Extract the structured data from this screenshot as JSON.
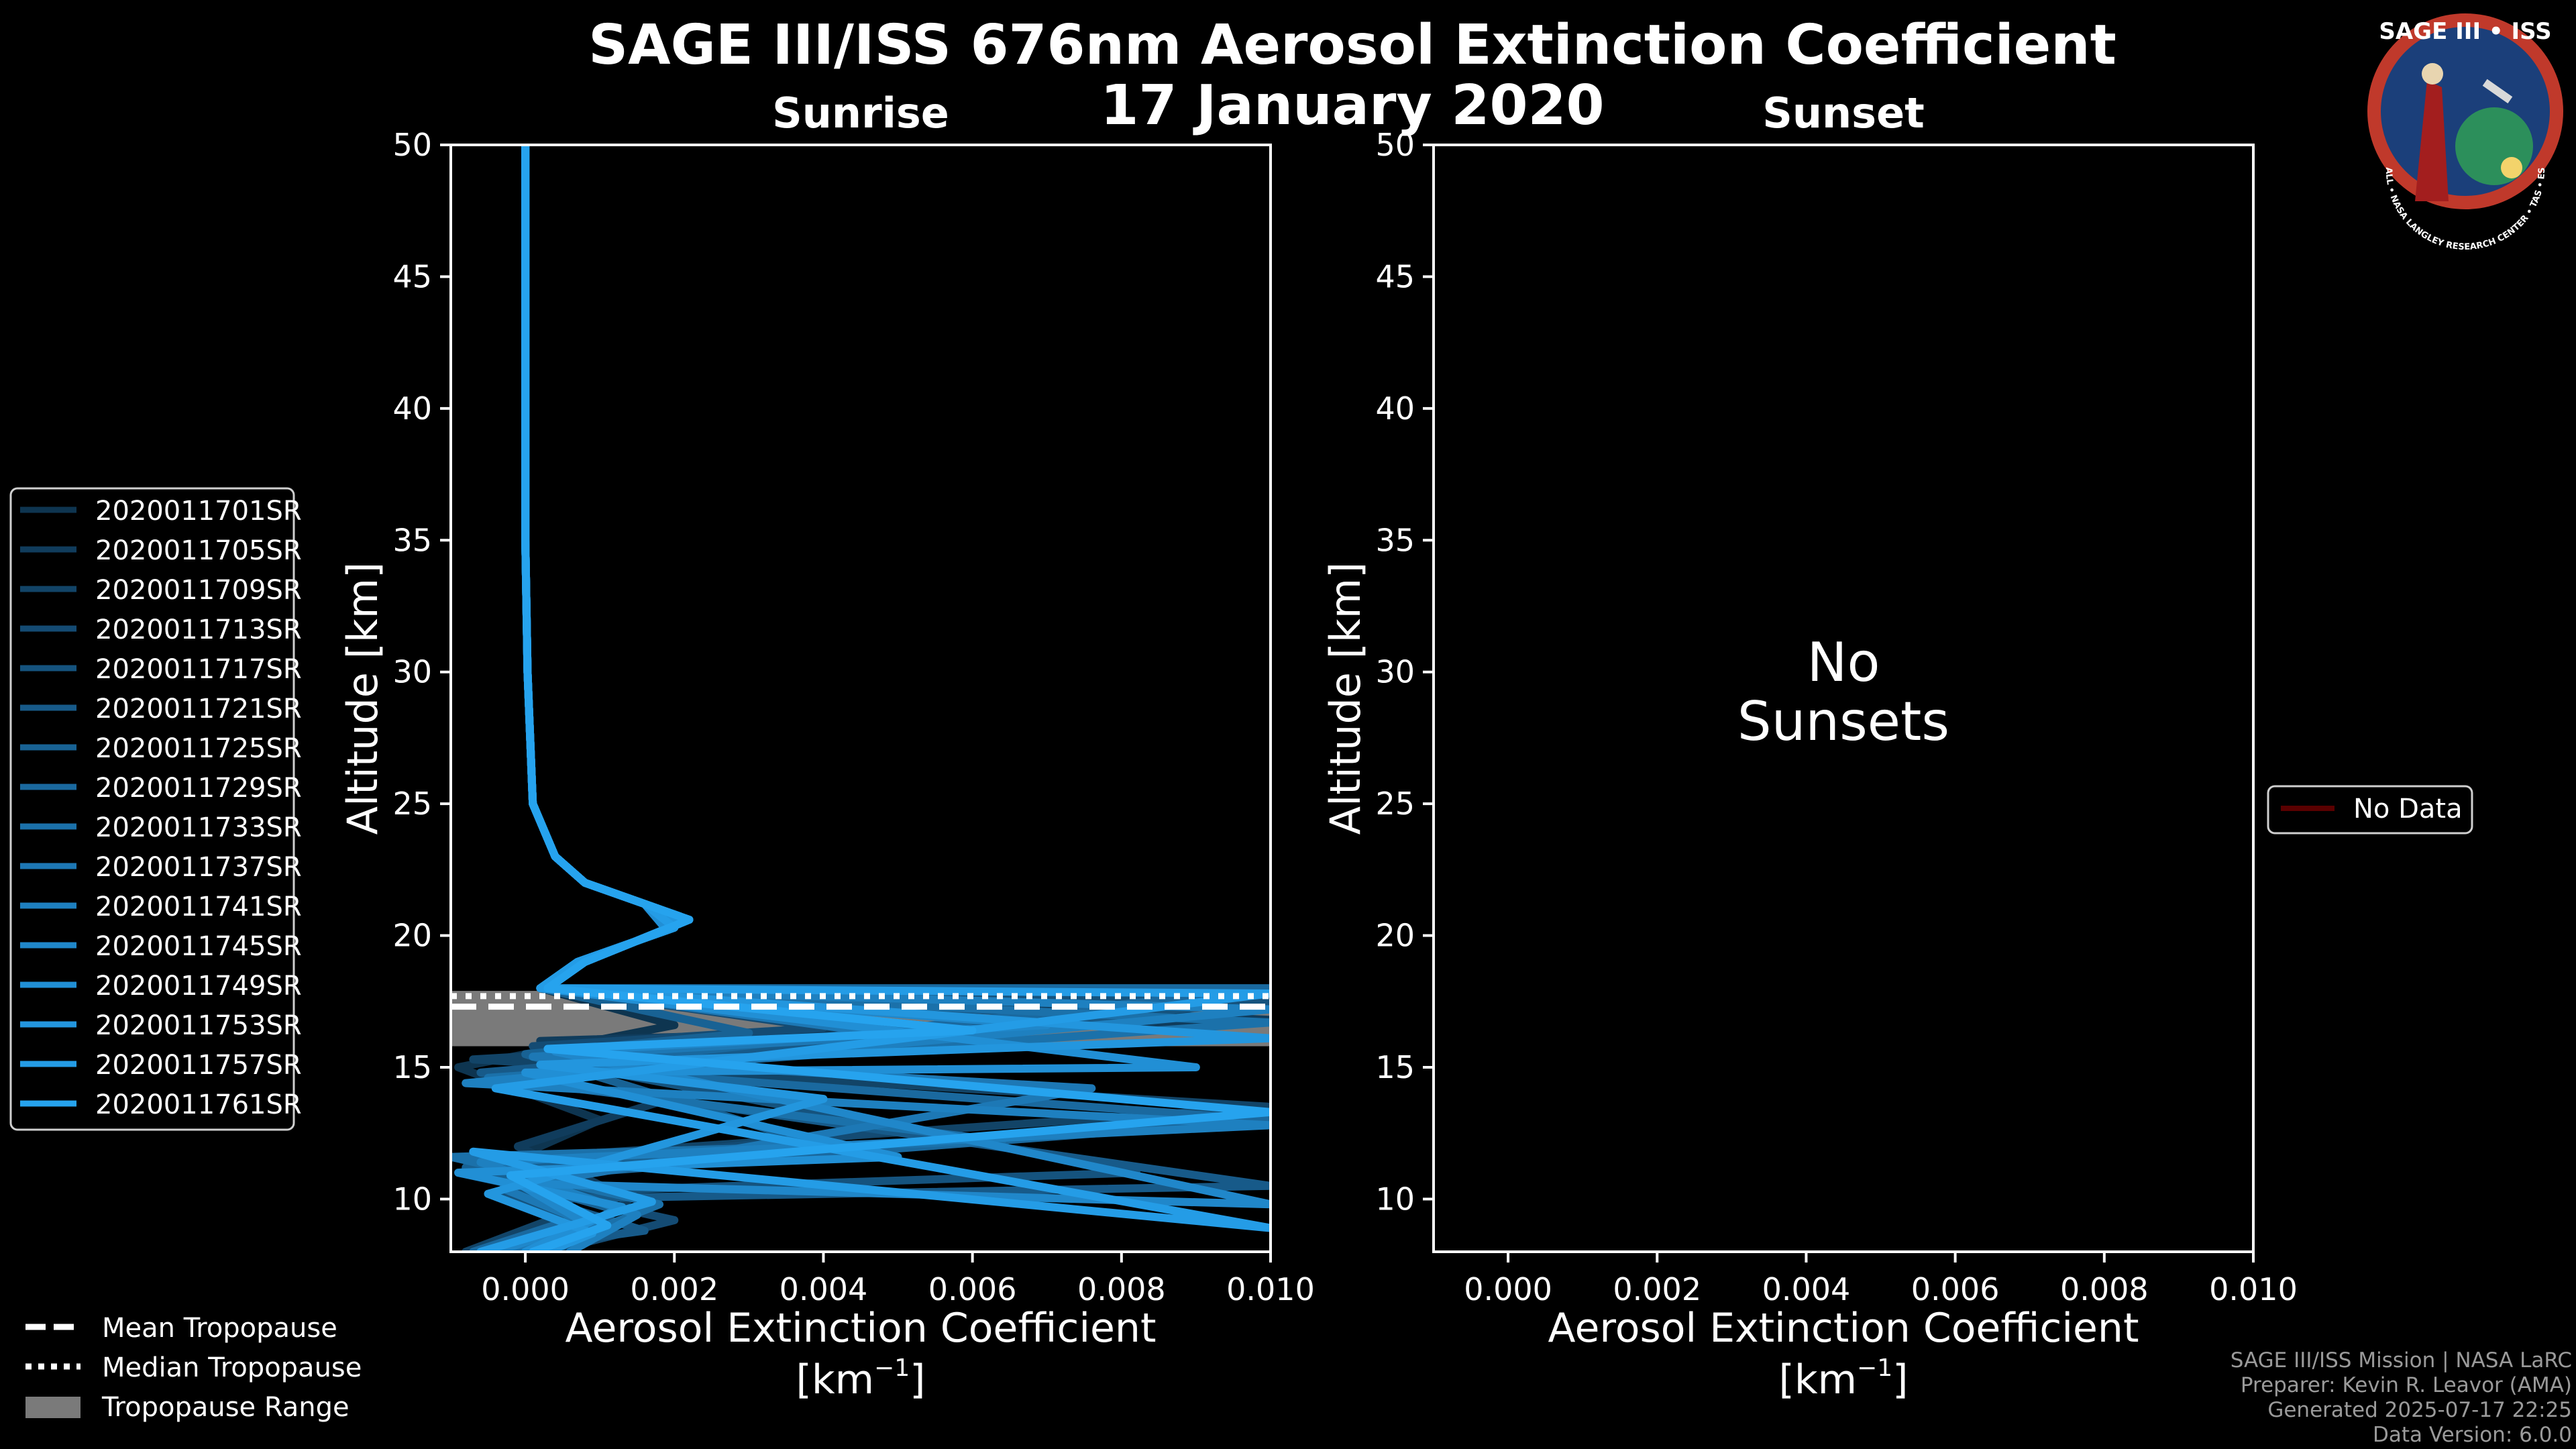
{
  "title": {
    "line1": "SAGE III/ISS 676nm Aerosol Extinction Coefficient",
    "line2": "17 January 2020"
  },
  "logo": {
    "text": "SAGE III • ISS",
    "ring_text": "BALL • NASA LANGLEY RESEARCH CENTER • TAS • ESA",
    "colors": {
      "ring": "#c0392b",
      "field": "#1b3f7a"
    }
  },
  "footer": {
    "mission": "SAGE III/ISS Mission | NASA LaRC",
    "preparer": "Preparer: Kevin R. Leavor (AMA)",
    "generated": "Generated 2025-07-17 22:25",
    "version": "Data Version: 6.0.0"
  },
  "tropo_legend": {
    "mean": "Mean Tropopause",
    "median": "Median Tropopause",
    "range": "Tropopause Range"
  },
  "nodata_legend": {
    "label": "No Data",
    "color": "#5a0000"
  },
  "chart_data": [
    {
      "type": "line",
      "panel": "sunrise",
      "title": "Sunrise",
      "xlabel": "Aerosol Extinction Coefficient",
      "xunit_open": "[km",
      "xunit_exp": "−1",
      "xunit_close": "]",
      "ylabel": "Altitude [km]",
      "xlim": [
        -0.001,
        0.01
      ],
      "ylim": [
        8,
        50
      ],
      "xticks": [
        0.0,
        0.002,
        0.004,
        0.006,
        0.008,
        0.01
      ],
      "xtick_labels": [
        "0.000",
        "0.002",
        "0.004",
        "0.006",
        "0.008",
        "0.010"
      ],
      "yticks": [
        10,
        15,
        20,
        25,
        30,
        35,
        40,
        45,
        50
      ],
      "ytick_labels": [
        "10",
        "15",
        "20",
        "25",
        "30",
        "35",
        "40",
        "45",
        "50"
      ],
      "tropopause": {
        "mean": 17.3,
        "median": 17.7,
        "range": [
          15.8,
          17.9
        ]
      },
      "series": [
        {
          "name": "2020011701SR",
          "color": "#0e3550",
          "x": [
            0.0,
            0.0,
            3e-05,
            0.0001,
            0.0004,
            0.0008,
            0.0016,
            0.0019,
            0.0007,
            0.0002,
            0.002,
            -0.0009,
            0.001,
            -0.0006,
            0.0011,
            0.0002
          ],
          "y": [
            50,
            35,
            30,
            25,
            23,
            22,
            21.2,
            20.2,
            19,
            18,
            16.6,
            15,
            13,
            11,
            9,
            8
          ]
        },
        {
          "name": "2020011705SR",
          "color": "#103c5c",
          "x": [
            0.0,
            0.0,
            3e-05,
            0.0001,
            0.0004,
            0.0008,
            0.0018,
            0.0021,
            0.0008,
            0.0003,
            0.01,
            0.0002,
            0.0026,
            -0.0001,
            0.0014,
            0.0005
          ],
          "y": [
            50,
            35,
            30,
            25,
            23,
            22,
            21.0,
            20.5,
            19,
            18,
            16.8,
            16,
            14.4,
            12,
            10,
            8
          ]
        },
        {
          "name": "2020011709SR",
          "color": "#124467",
          "x": [
            0.0,
            0.0,
            3e-05,
            0.0001,
            0.0004,
            0.0008,
            0.0016,
            0.002,
            0.0007,
            0.0002,
            0.006,
            -0.0007,
            0.01,
            -0.0003,
            0.0006,
            -0.0008
          ],
          "y": [
            50,
            35,
            30,
            25,
            23,
            22,
            21.2,
            20.3,
            19,
            18,
            16.4,
            15.3,
            13.5,
            11.5,
            9.5,
            8
          ]
        },
        {
          "name": "2020011713SR",
          "color": "#144b73",
          "x": [
            0.0,
            0.0,
            3e-05,
            0.0001,
            0.0004,
            0.0008,
            0.0018,
            0.0022,
            0.0008,
            0.0003,
            0.004,
            0.0001,
            0.005,
            -0.0009,
            0.002,
            0.0003
          ],
          "y": [
            50,
            35,
            30,
            25,
            23,
            22,
            21.0,
            20.6,
            19,
            18,
            16.5,
            15.8,
            12.6,
            11,
            9.2,
            8
          ]
        },
        {
          "name": "2020011717SR",
          "color": "#15537e",
          "x": [
            0.0,
            0.0,
            3e-05,
            0.0001,
            0.0004,
            0.0008,
            0.0016,
            0.0019,
            0.0007,
            0.0002,
            0.01,
            0.0004,
            0.0082,
            -0.0004,
            0.0009,
            0.0001
          ],
          "y": [
            50,
            35,
            30,
            25,
            23,
            22,
            21.2,
            20.2,
            19,
            18,
            17.5,
            15.2,
            11.0,
            10.2,
            9,
            8
          ]
        },
        {
          "name": "2020011721SR",
          "color": "#175a89",
          "x": [
            0.0,
            0.0,
            3e-05,
            0.0001,
            0.0004,
            0.0008,
            0.0018,
            0.0021,
            0.0008,
            0.0003,
            0.008,
            -0.0006,
            0.01,
            0.0002,
            0.0016,
            -0.0005
          ],
          "y": [
            50,
            35,
            30,
            25,
            23,
            22,
            21.0,
            20.5,
            19,
            18,
            16.9,
            14.8,
            10.5,
            10,
            8.8,
            8
          ]
        },
        {
          "name": "2020011725SR",
          "color": "#186294",
          "x": [
            0.0,
            0.0,
            3e-05,
            0.0001,
            0.0004,
            0.0008,
            0.0016,
            0.002,
            0.0007,
            0.0002,
            0.003,
            0.0,
            0.004,
            -0.0008,
            0.0012,
            0.0004
          ],
          "y": [
            50,
            35,
            30,
            25,
            23,
            22,
            21.2,
            20.3,
            19,
            18,
            16.3,
            15.5,
            12.0,
            11.2,
            9.6,
            8
          ]
        },
        {
          "name": "2020011729SR",
          "color": "#1a699f",
          "x": [
            0.0,
            0.0,
            3e-05,
            0.0001,
            0.0004,
            0.0008,
            0.0018,
            0.0022,
            0.0008,
            0.0003,
            0.01,
            0.0003,
            0.01,
            -0.0002,
            0.0007,
            -0.0007
          ],
          "y": [
            50,
            35,
            30,
            25,
            23,
            22,
            21.0,
            20.6,
            19,
            18,
            18.0,
            15.0,
            13.0,
            10.8,
            9.3,
            8
          ]
        },
        {
          "name": "2020011733SR",
          "color": "#1b71aa",
          "x": [
            0.0,
            0.0,
            3e-05,
            0.0001,
            0.0004,
            0.0008,
            0.0016,
            0.0019,
            0.0007,
            0.0002,
            0.01,
            -0.0005,
            0.0064,
            -0.001,
            0.0018,
            0.0002
          ],
          "y": [
            50,
            35,
            30,
            25,
            23,
            22,
            21.2,
            20.2,
            19,
            18,
            16.7,
            14.6,
            12.2,
            11.6,
            9.8,
            8
          ]
        },
        {
          "name": "2020011737SR",
          "color": "#1d78b5",
          "x": [
            0.0,
            0.0,
            3e-05,
            0.0001,
            0.0004,
            0.0008,
            0.0018,
            0.0021,
            0.0008,
            0.0003,
            0.005,
            0.0001,
            0.0076,
            -0.0003,
            0.001,
            -0.0002
          ],
          "y": [
            50,
            35,
            30,
            25,
            23,
            22,
            21.0,
            20.5,
            19,
            18,
            16.2,
            15.4,
            14.2,
            10.4,
            8.9,
            8
          ]
        },
        {
          "name": "2020011741SR",
          "color": "#1e80c0",
          "x": [
            0.0,
            0.0,
            3e-05,
            0.0001,
            0.0004,
            0.0008,
            0.0016,
            0.002,
            0.0007,
            0.0002,
            0.01,
            -0.0008,
            0.01,
            -0.0006,
            0.0015,
            0.0006
          ],
          "y": [
            50,
            35,
            30,
            25,
            23,
            22,
            21.2,
            20.3,
            19,
            18,
            17.2,
            14.4,
            12.8,
            11.4,
            9.4,
            8
          ]
        },
        {
          "name": "2020011745SR",
          "color": "#2087ca",
          "x": [
            0.0,
            0.0,
            3e-05,
            0.0001,
            0.0004,
            0.0008,
            0.0018,
            0.0022,
            0.0008,
            0.0003,
            0.007,
            0.0004,
            0.01,
            -0.0001,
            0.0008,
            -0.0004
          ],
          "y": [
            50,
            35,
            30,
            25,
            23,
            22,
            21.0,
            20.6,
            19,
            18,
            16.6,
            15.6,
            9.8,
            10.6,
            9.1,
            8
          ]
        },
        {
          "name": "2020011749SR",
          "color": "#218fd5",
          "x": [
            0.0,
            0.0,
            3e-05,
            0.0001,
            0.0004,
            0.0008,
            0.0016,
            0.0019,
            0.0007,
            0.0002,
            0.009,
            0.0,
            0.005,
            -0.0009,
            0.0013,
            0.0
          ],
          "y": [
            50,
            35,
            30,
            25,
            23,
            22,
            21.2,
            20.2,
            19,
            18,
            15.0,
            14.8,
            11.6,
            11.0,
            9.7,
            8
          ]
        },
        {
          "name": "2020011753SR",
          "color": "#2396de",
          "x": [
            0.0,
            0.0,
            3e-05,
            0.0001,
            0.0004,
            0.0008,
            0.0018,
            0.0021,
            0.0008,
            0.0003,
            0.01,
            0.0002,
            0.004,
            -0.0005,
            0.0009,
            0.0003
          ],
          "y": [
            50,
            35,
            30,
            25,
            23,
            22,
            21.0,
            20.5,
            19,
            18,
            16.1,
            15.1,
            13.8,
            10.2,
            8.7,
            8
          ]
        },
        {
          "name": "2020011757SR",
          "color": "#249ce6",
          "x": [
            0.0,
            0.0,
            3e-05,
            0.0001,
            0.0004,
            0.0008,
            0.0016,
            0.002,
            0.0007,
            0.0002,
            0.01,
            -0.0004,
            0.01,
            -0.0007,
            0.0017,
            -0.0006
          ],
          "y": [
            50,
            35,
            30,
            25,
            23,
            22,
            21.2,
            20.3,
            19,
            18,
            17.8,
            14.2,
            8.9,
            11.8,
            9.9,
            8
          ]
        },
        {
          "name": "2020011761SR",
          "color": "#26a3ee",
          "x": [
            0.0,
            0.0,
            3e-05,
            0.0001,
            0.0004,
            0.0008,
            0.0018,
            0.0022,
            0.0008,
            0.0003,
            0.006,
            0.0003,
            0.01,
            -0.0002,
            0.0011,
            0.0001
          ],
          "y": [
            50,
            35,
            30,
            25,
            23,
            22,
            21.0,
            20.6,
            19,
            18,
            16.4,
            15.7,
            13.3,
            10.9,
            9.0,
            8
          ]
        }
      ]
    },
    {
      "type": "line",
      "panel": "sunset",
      "title": "Sunset",
      "xlabel": "Aerosol Extinction Coefficient",
      "xunit_open": "[km",
      "xunit_exp": "−1",
      "xunit_close": "]",
      "ylabel": "Altitude [km]",
      "xlim": [
        -0.001,
        0.01
      ],
      "ylim": [
        8,
        50
      ],
      "xticks": [
        0.0,
        0.002,
        0.004,
        0.006,
        0.008,
        0.01
      ],
      "xtick_labels": [
        "0.000",
        "0.002",
        "0.004",
        "0.006",
        "0.008",
        "0.010"
      ],
      "yticks": [
        10,
        15,
        20,
        25,
        30,
        35,
        40,
        45,
        50
      ],
      "ytick_labels": [
        "10",
        "15",
        "20",
        "25",
        "30",
        "35",
        "40",
        "45",
        "50"
      ],
      "message_line1": "No",
      "message_line2": "Sunsets",
      "series": []
    }
  ]
}
